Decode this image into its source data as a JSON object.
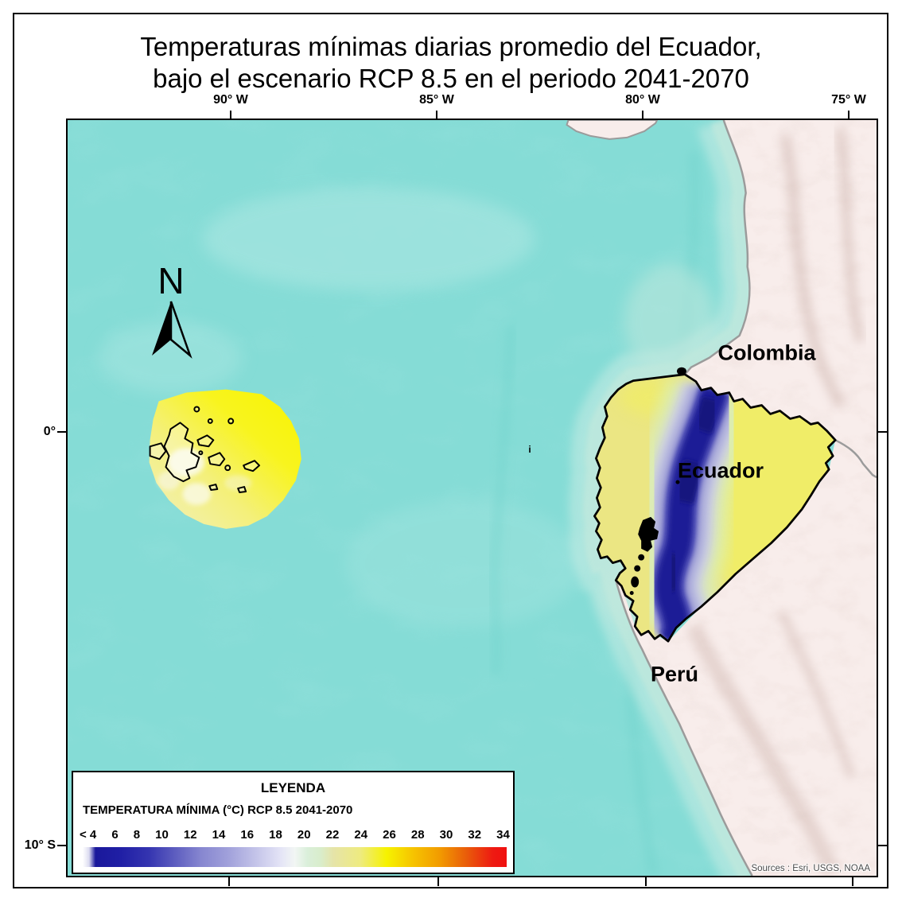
{
  "title": {
    "line1": "Temperaturas mínimas diarias promedio del Ecuador,",
    "line2": "bajo el escenario RCP 8.5 en el periodo 2041-2070"
  },
  "graticule": {
    "top": [
      "90° W",
      "85° W",
      "80° W",
      "75° W"
    ],
    "left": [
      "0°",
      "10° S"
    ]
  },
  "map_labels": {
    "colombia": "Colombia",
    "ecuador": "Ecuador",
    "peru": "Perú",
    "stray": "i"
  },
  "north_arrow_label": "N",
  "sources": "Sources : Esri, USGS, NOAA",
  "legend": {
    "title": "LEYENDA",
    "subtitle": "TEMPERATURA MÍNIMA (°C) RCP 8.5 2041-2070",
    "ticks": [
      "< 4",
      "6",
      "8",
      "10",
      "12",
      "14",
      "16",
      "18",
      "20",
      "22",
      "24",
      "26",
      "28",
      "30",
      "32",
      "34"
    ],
    "gradient_stops": [
      "#ffffff 0%",
      "#dcdcf0 1.5%",
      "#1a189b 3%",
      "#201fa5 9%",
      "#3434b0 15.5%",
      "#5f5fc0 22%",
      "#8787d0 28%",
      "#9f9fda 34%",
      "#c2c2e8 40.5%",
      "#e4e4f6 46.7%",
      "#f2f6f4 50%",
      "#daefda 53%",
      "#d9edcc 56%",
      "#e6e4a8 59.2%",
      "#eeeb7f 65.5%",
      "#f6f200 71.7%",
      "#f6c300 78%",
      "#f29b00 84.2%",
      "#e95c0a 90.5%",
      "#ee1a12 96.7%",
      "#f01010 100%"
    ]
  },
  "colors": {
    "ocean": "#85dcd6",
    "ocean-light": "#a8e6e1",
    "ocean-dark": "#6fd2cb",
    "shallow": "#c0e8dd",
    "shallow-light": "#d8f0e7",
    "land": "#f8edeb",
    "hillshade": "#c3a69e",
    "coast": "#9b9b9b",
    "ecuador-fill": "#ebe683",
    "ecuador-bright": "#f2ef5e",
    "andes-core": "#1d1c96",
    "andes-dark": "#14147e",
    "andes-mid": "#4a4ab2",
    "andes-fringe": "#9898d6",
    "andes-pale": "#c9c9ec",
    "andes-green": "#d8edc2",
    "galapagos-bright": "#f8f500",
    "galapagos-pale": "#f1efbe",
    "sources-text": "#4a4a4a"
  }
}
